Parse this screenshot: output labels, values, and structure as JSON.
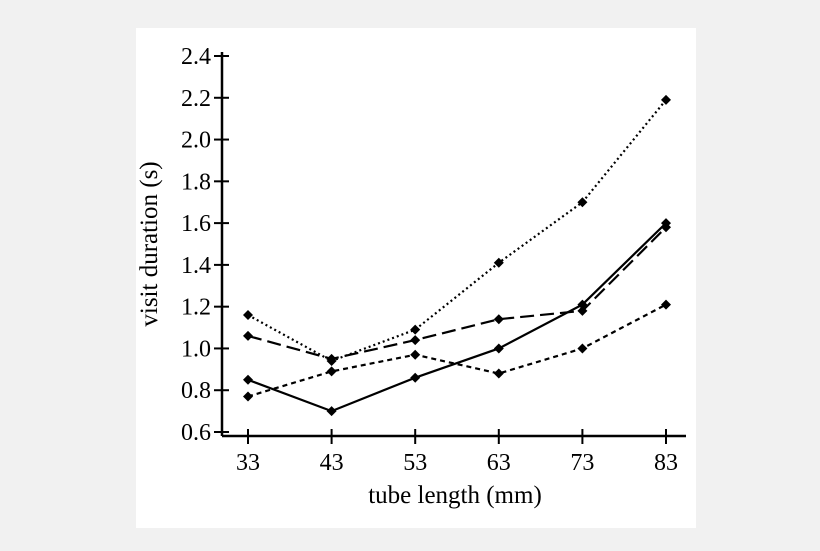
{
  "chart_data": {
    "type": "line",
    "xlabel": "tube length (mm)",
    "ylabel": "visit duration (s)",
    "categories": [
      "33",
      "43",
      "53",
      "63",
      "73",
      "83"
    ],
    "yticks": [
      "0.6",
      "0.8",
      "1.0",
      "1.2",
      "1.4",
      "1.6",
      "1.8",
      "2.0",
      "2.2",
      "2.4"
    ],
    "xlim": [
      33,
      83
    ],
    "ylim": [
      0.6,
      2.4
    ],
    "grid": false,
    "series": [
      {
        "style": "dotted",
        "values": [
          1.16,
          0.94,
          1.09,
          1.41,
          1.7,
          2.19
        ]
      },
      {
        "style": "long-dash",
        "values": [
          1.06,
          0.95,
          1.04,
          1.14,
          1.18,
          1.58
        ]
      },
      {
        "style": "solid",
        "values": [
          0.85,
          0.7,
          0.86,
          1.0,
          1.21,
          1.6
        ]
      },
      {
        "style": "short-dash",
        "values": [
          0.77,
          0.89,
          0.97,
          0.88,
          1.0,
          1.21
        ]
      }
    ],
    "marker": "diamond",
    "line_color": "#000000",
    "background": "#ffffff"
  }
}
